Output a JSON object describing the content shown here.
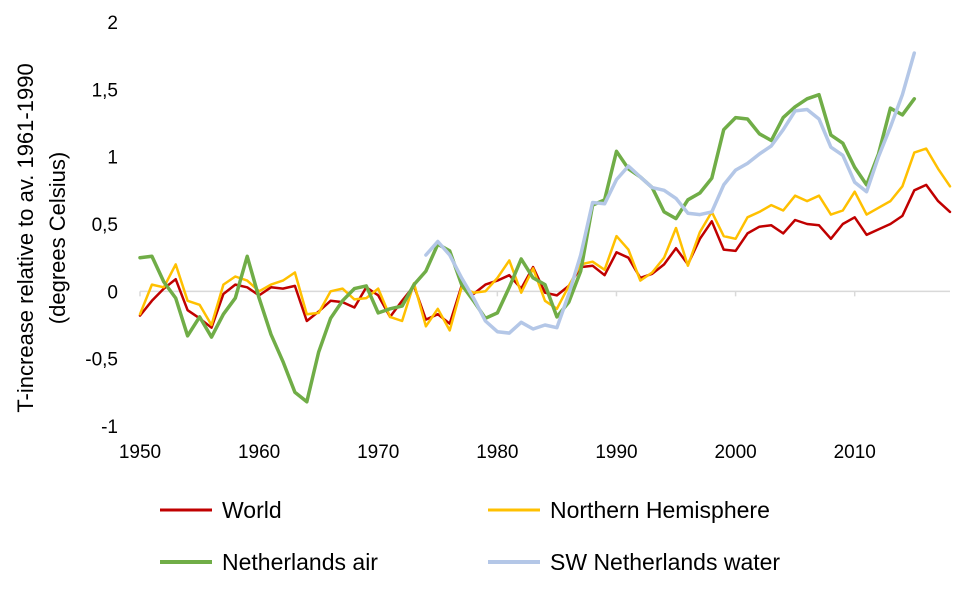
{
  "chart_data": {
    "type": "line",
    "title": "",
    "xlabel": "",
    "ylabel_lines": [
      "T-increase relative to av. 1961-1990",
      "(degrees Celsius)"
    ],
    "xlim": [
      1950,
      2018
    ],
    "ylim": [
      -1,
      2
    ],
    "x_ticks": [
      1950,
      1960,
      1970,
      1980,
      1990,
      2000,
      2010
    ],
    "y_ticks": [
      {
        "value": 2,
        "label": "2"
      },
      {
        "value": 1.5,
        "label": "1,5"
      },
      {
        "value": 1,
        "label": "1"
      },
      {
        "value": 0.5,
        "label": "0,5"
      },
      {
        "value": 0,
        "label": "0"
      },
      {
        "value": -0.5,
        "label": "-0,5"
      },
      {
        "value": -1,
        "label": "-1"
      }
    ],
    "grid": false,
    "legend_position": "bottom",
    "series": [
      {
        "name": "World",
        "color": "#c00000",
        "x": [
          1950,
          1951,
          1952,
          1953,
          1954,
          1955,
          1956,
          1957,
          1958,
          1959,
          1960,
          1961,
          1962,
          1963,
          1964,
          1965,
          1966,
          1967,
          1968,
          1969,
          1970,
          1971,
          1972,
          1973,
          1974,
          1975,
          1976,
          1977,
          1978,
          1979,
          1980,
          1981,
          1982,
          1983,
          1984,
          1985,
          1986,
          1987,
          1988,
          1989,
          1990,
          1991,
          1992,
          1993,
          1994,
          1995,
          1996,
          1997,
          1998,
          1999,
          2000,
          2001,
          2002,
          2003,
          2004,
          2005,
          2006,
          2007,
          2008,
          2009,
          2010,
          2011,
          2012,
          2013,
          2014,
          2015,
          2016,
          2017,
          2018
        ],
        "values": [
          -0.18,
          -0.07,
          0.02,
          0.09,
          -0.14,
          -0.2,
          -0.27,
          -0.02,
          0.05,
          0.03,
          -0.03,
          0.03,
          0.02,
          0.04,
          -0.22,
          -0.15,
          -0.07,
          -0.08,
          -0.12,
          0.03,
          -0.03,
          -0.19,
          -0.07,
          0.04,
          -0.21,
          -0.17,
          -0.24,
          0.04,
          -0.02,
          0.05,
          0.08,
          0.12,
          0.02,
          0.18,
          -0.01,
          -0.03,
          0.04,
          0.18,
          0.19,
          0.12,
          0.29,
          0.25,
          0.1,
          0.13,
          0.2,
          0.32,
          0.2,
          0.39,
          0.52,
          0.31,
          0.3,
          0.43,
          0.48,
          0.49,
          0.43,
          0.53,
          0.5,
          0.49,
          0.39,
          0.5,
          0.55,
          0.42,
          0.46,
          0.5,
          0.56,
          0.75,
          0.79,
          0.67,
          0.59
        ]
      },
      {
        "name": "Northern Hemisphere",
        "color": "#ffc000",
        "x": [
          1950,
          1951,
          1952,
          1953,
          1954,
          1955,
          1956,
          1957,
          1958,
          1959,
          1960,
          1961,
          1962,
          1963,
          1964,
          1965,
          1966,
          1967,
          1968,
          1969,
          1970,
          1971,
          1972,
          1973,
          1974,
          1975,
          1976,
          1977,
          1978,
          1979,
          1980,
          1981,
          1982,
          1983,
          1984,
          1985,
          1986,
          1987,
          1988,
          1989,
          1990,
          1991,
          1992,
          1993,
          1994,
          1995,
          1996,
          1997,
          1998,
          1999,
          2000,
          2001,
          2002,
          2003,
          2004,
          2005,
          2006,
          2007,
          2008,
          2009,
          2010,
          2011,
          2012,
          2013,
          2014,
          2015,
          2016,
          2017,
          2018
        ],
        "values": [
          -0.17,
          0.05,
          0.03,
          0.2,
          -0.07,
          -0.1,
          -0.25,
          0.05,
          0.11,
          0.08,
          0.0,
          0.05,
          0.08,
          0.14,
          -0.17,
          -0.16,
          0.0,
          0.02,
          -0.06,
          -0.05,
          0.02,
          -0.19,
          -0.22,
          0.06,
          -0.26,
          -0.13,
          -0.29,
          0.03,
          -0.01,
          0.0,
          0.1,
          0.23,
          -0.01,
          0.17,
          -0.07,
          -0.13,
          0.04,
          0.2,
          0.22,
          0.16,
          0.41,
          0.31,
          0.08,
          0.14,
          0.25,
          0.47,
          0.19,
          0.44,
          0.59,
          0.41,
          0.39,
          0.55,
          0.59,
          0.64,
          0.6,
          0.71,
          0.67,
          0.71,
          0.57,
          0.6,
          0.74,
          0.57,
          0.62,
          0.67,
          0.78,
          1.03,
          1.06,
          0.91,
          0.78
        ]
      },
      {
        "name": "Netherlands air",
        "color": "#70ad47",
        "x": [
          1950,
          1951,
          1952,
          1953,
          1954,
          1955,
          1956,
          1957,
          1958,
          1959,
          1960,
          1961,
          1962,
          1963,
          1964,
          1965,
          1966,
          1967,
          1968,
          1969,
          1970,
          1971,
          1972,
          1973,
          1974,
          1975,
          1976,
          1977,
          1978,
          1979,
          1980,
          1981,
          1982,
          1983,
          1984,
          1985,
          1986,
          1987,
          1988,
          1989,
          1990,
          1991,
          1992,
          1993,
          1994,
          1995,
          1996,
          1997,
          1998,
          1999,
          2000,
          2001,
          2002,
          2003,
          2004,
          2005,
          2006,
          2007,
          2008,
          2009,
          2010,
          2011,
          2012,
          2013,
          2014,
          2015
        ],
        "values": [
          0.25,
          0.26,
          0.07,
          -0.05,
          -0.33,
          -0.19,
          -0.34,
          -0.17,
          -0.05,
          0.26,
          -0.05,
          -0.32,
          -0.52,
          -0.75,
          -0.82,
          -0.45,
          -0.2,
          -0.07,
          0.02,
          0.04,
          -0.16,
          -0.13,
          -0.11,
          0.05,
          0.15,
          0.35,
          0.3,
          0.05,
          -0.07,
          -0.2,
          -0.16,
          0.03,
          0.24,
          0.1,
          0.05,
          -0.19,
          -0.08,
          0.15,
          0.64,
          0.68,
          1.04,
          0.91,
          0.85,
          0.77,
          0.59,
          0.54,
          0.68,
          0.73,
          0.84,
          1.2,
          1.29,
          1.28,
          1.17,
          1.12,
          1.29,
          1.37,
          1.43,
          1.46,
          1.16,
          1.1,
          0.92,
          0.79,
          1.02,
          1.36,
          1.31,
          1.43
        ]
      },
      {
        "name": "SW Netherlands water",
        "color": "#b4c7e7",
        "x": [
          1974,
          1975,
          1976,
          1977,
          1978,
          1979,
          1980,
          1981,
          1982,
          1983,
          1984,
          1985,
          1986,
          1987,
          1988,
          1989,
          1990,
          1991,
          1992,
          1993,
          1994,
          1995,
          1996,
          1997,
          1998,
          1999,
          2000,
          2001,
          2002,
          2003,
          2004,
          2005,
          2006,
          2007,
          2008,
          2009,
          2010,
          2011,
          2012,
          2013,
          2014,
          2015
        ],
        "values": [
          0.27,
          0.37,
          0.27,
          0.1,
          -0.05,
          -0.22,
          -0.3,
          -0.31,
          -0.23,
          -0.28,
          -0.25,
          -0.27,
          -0.02,
          0.27,
          0.66,
          0.65,
          0.83,
          0.93,
          0.85,
          0.77,
          0.75,
          0.69,
          0.58,
          0.57,
          0.59,
          0.79,
          0.9,
          0.95,
          1.02,
          1.08,
          1.2,
          1.34,
          1.35,
          1.28,
          1.07,
          1.01,
          0.81,
          0.74,
          1.0,
          1.22,
          1.46,
          1.77
        ]
      }
    ]
  }
}
